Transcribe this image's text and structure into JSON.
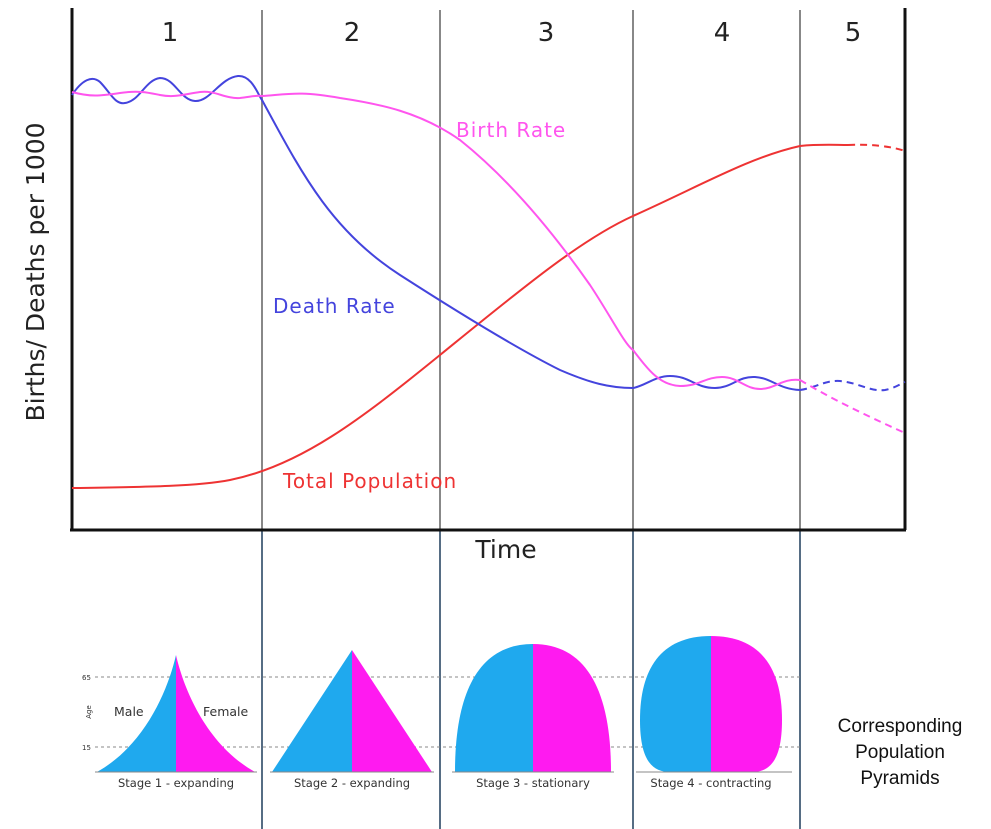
{
  "diagram": {
    "y_axis_label": "Births/ Deaths per 1000",
    "x_axis_label": "Time",
    "stages": [
      "1",
      "2",
      "3",
      "4",
      "5"
    ],
    "curves": {
      "birth_rate": {
        "label": "Birth Rate",
        "color": "#ff55ee"
      },
      "death_rate": {
        "label": "Death Rate",
        "color": "#4444dd"
      },
      "total_population": {
        "label": "Total Population",
        "color": "#ee3333"
      }
    },
    "colors": {
      "male": "#1fa9ee",
      "female": "#ff1af0",
      "frame": "#111111",
      "stage_line": "#888888",
      "connector": "#1f3d5c"
    }
  },
  "pyramids": {
    "age_axis_label": "Age",
    "age_ticks": [
      "65",
      "15"
    ],
    "male_label": "Male",
    "female_label": "Female",
    "captions": [
      "Stage 1 - expanding",
      "Stage 2 - expanding",
      "Stage 3 - stationary",
      "Stage 4 - contracting"
    ],
    "side_note": [
      "Corresponding",
      "Population",
      "Pyramids"
    ]
  }
}
